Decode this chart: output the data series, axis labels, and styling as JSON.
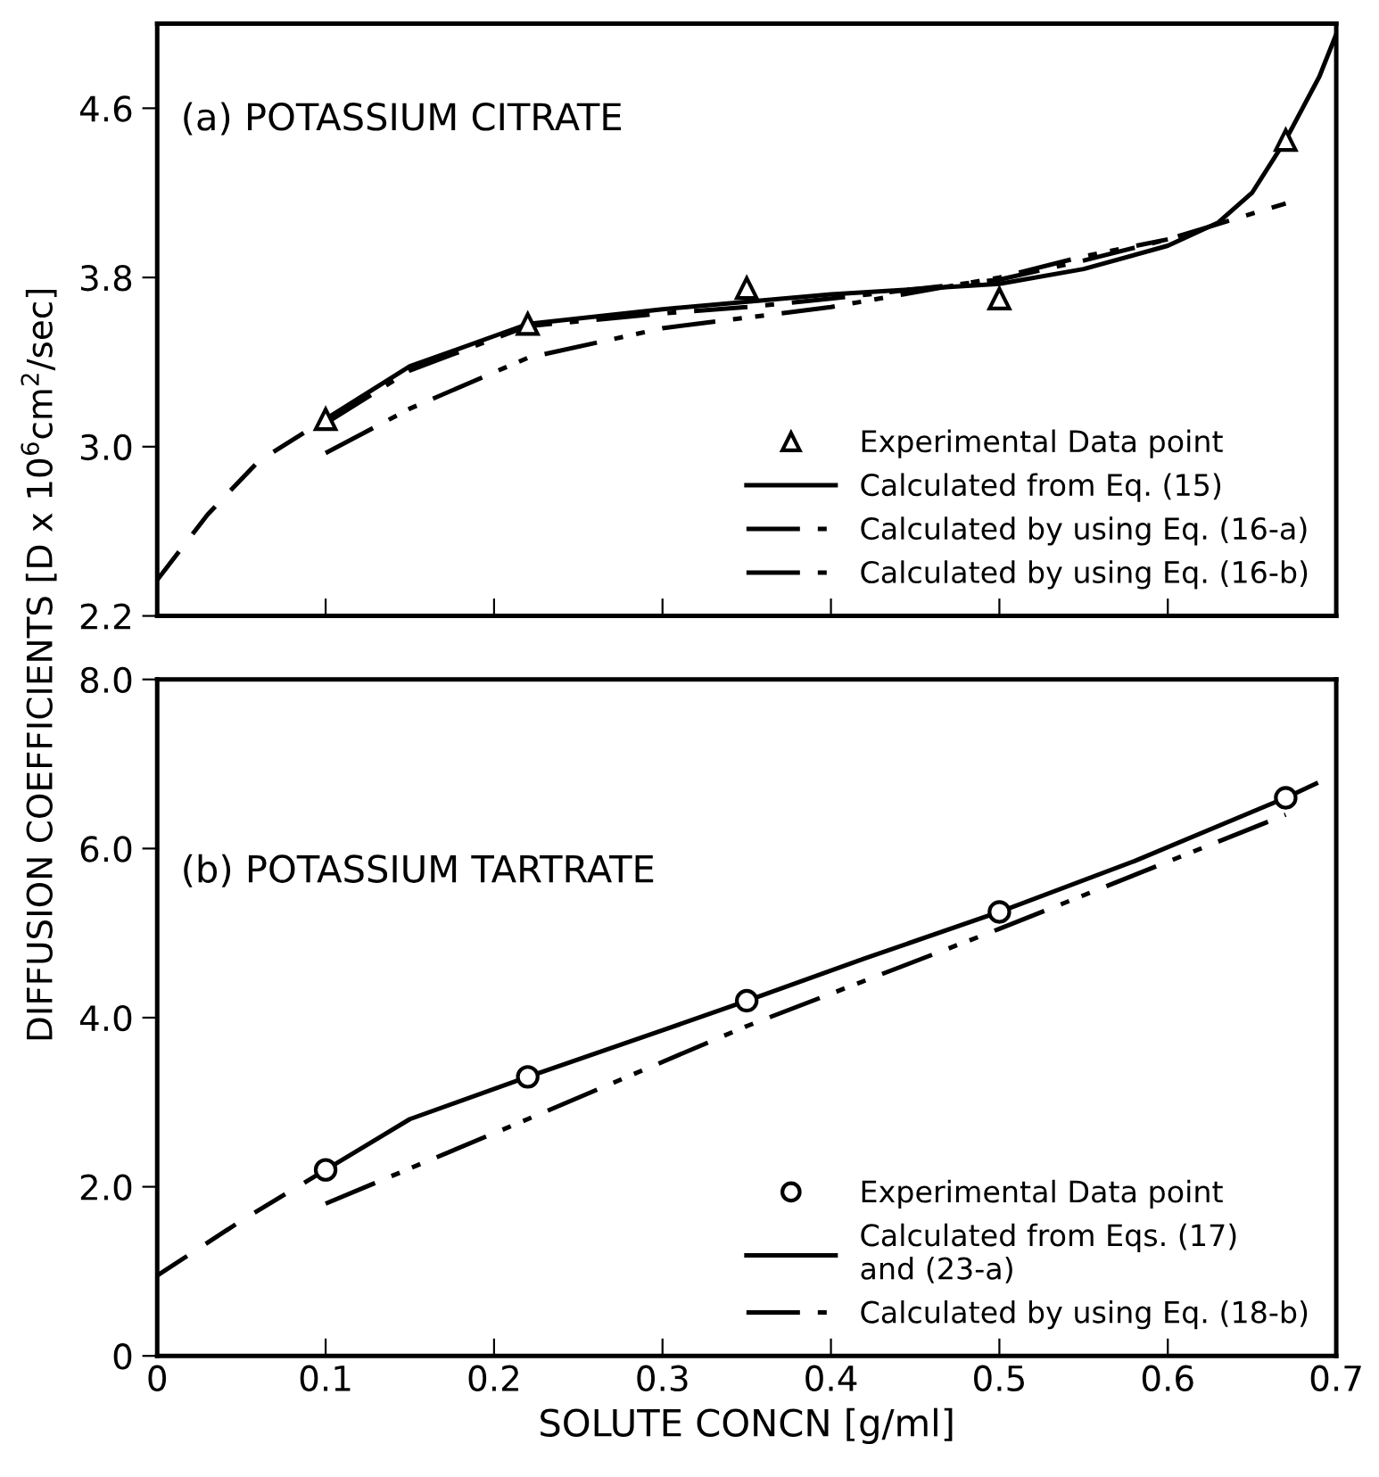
{
  "chart_data": [
    {
      "type": "line",
      "ylabel": "DIFFUSION COEFFICIENTS [D x 10$^{6}$cm$^{2}$/sec]",
      "annotations": [
        "(a) POTASSIUM CITRATE"
      ],
      "xlim": [
        0,
        0.7
      ],
      "ylim": [
        2.2,
        5.0
      ],
      "xticks": [
        {
          "value": 0,
          "label": null
        },
        {
          "value": 0.1,
          "label": null
        },
        {
          "value": 0.2,
          "label": null
        },
        {
          "value": 0.3,
          "label": null
        },
        {
          "value": 0.4,
          "label": null
        },
        {
          "value": 0.5,
          "label": null
        },
        {
          "value": 0.6,
          "label": null
        },
        {
          "value": 0.7,
          "label": null
        }
      ],
      "yticks": [
        {
          "value": 2.2,
          "label": "2.2"
        },
        {
          "value": 3.0,
          "label": "3.0"
        },
        {
          "value": 3.8,
          "label": "3.8"
        },
        {
          "value": 4.6,
          "label": "4.6"
        }
      ],
      "tick_labels": "y",
      "legend": "bottom right",
      "grid": false,
      "series": [
        {
          "name": "Experimental Data point",
          "type": "scatter",
          "marker": "triangle",
          "color": "#000000",
          "x": [
            0.1,
            0.22,
            0.35,
            0.5,
            0.67
          ],
          "values": [
            3.13,
            3.58,
            3.75,
            3.7,
            4.45
          ]
        },
        {
          "name": "Calculated from Eq. (15)",
          "line_style": "solid",
          "color": "#000000",
          "x": [
            0.1,
            0.15,
            0.22,
            0.3,
            0.4,
            0.5,
            0.55,
            0.6,
            0.63,
            0.65,
            0.67,
            0.69,
            0.7
          ],
          "values": [
            3.13,
            3.38,
            3.58,
            3.65,
            3.72,
            3.77,
            3.84,
            3.95,
            4.06,
            4.2,
            4.45,
            4.75,
            4.95
          ]
        },
        {
          "line_style": "dashed",
          "color": "#000000",
          "x": [
            0,
            0.03,
            0.06,
            0.1
          ],
          "values": [
            2.37,
            2.68,
            2.93,
            3.13
          ]
        },
        {
          "name": "Calculated by using Eq. (16-a)",
          "line_style": "dashdot",
          "color": "#000000",
          "x": [
            0.1,
            0.15,
            0.22,
            0.3,
            0.35,
            0.4,
            0.5,
            0.55,
            0.6,
            0.67
          ],
          "values": [
            3.11,
            3.36,
            3.57,
            3.63,
            3.66,
            3.7,
            3.79,
            3.88,
            3.98,
            4.15
          ]
        },
        {
          "name": "Calculated by using Eq. (16-b)",
          "line_style": "dashdotdot",
          "color": "#000000",
          "x": [
            0.1,
            0.15,
            0.22,
            0.3,
            0.4,
            0.5,
            0.55,
            0.6
          ],
          "values": [
            2.97,
            3.18,
            3.42,
            3.56,
            3.66,
            3.8,
            3.9,
            3.98
          ]
        }
      ]
    },
    {
      "type": "line",
      "xlabel": "SOLUTE CONCN [g/ml]",
      "annotations": [
        "(b) POTASSIUM TARTRATE"
      ],
      "xlim": [
        0,
        0.7
      ],
      "ylim": [
        0,
        8.0
      ],
      "xticks": [
        0,
        0.1,
        0.2,
        0.3,
        0.4,
        0.5,
        0.6,
        0.7
      ],
      "yticks": [
        {
          "value": 0,
          "label": "0"
        },
        {
          "value": 2.0,
          "label": "2.0"
        },
        {
          "value": 4.0,
          "label": "4.0"
        },
        {
          "value": 6.0,
          "label": "6.0"
        },
        {
          "value": 8.0,
          "label": "8.0"
        }
      ],
      "legend": "bottom right",
      "grid": false,
      "series": [
        {
          "name": "Experimental Data point",
          "type": "scatter",
          "marker": "circle",
          "color": "#000000",
          "x": [
            0.1,
            0.22,
            0.35,
            0.5,
            0.67
          ],
          "values": [
            2.2,
            3.3,
            4.2,
            5.25,
            6.6
          ]
        },
        {
          "name": "Calculated from Eqs. (17)\nand (23-a)",
          "line_style": "solid",
          "color": "#000000",
          "x": [
            0.1,
            0.15,
            0.22,
            0.3,
            0.35,
            0.42,
            0.5,
            0.58,
            0.67
          ],
          "values": [
            2.2,
            2.8,
            3.3,
            3.85,
            4.2,
            4.7,
            5.25,
            5.85,
            6.6
          ]
        },
        {
          "line_style": "dashed",
          "color": "#000000",
          "x": [
            0,
            0.05,
            0.1
          ],
          "values": [
            0.95,
            1.6,
            2.2
          ]
        },
        {
          "line_style": "dashed",
          "color": "#000000",
          "x": [
            0.67,
            0.7
          ],
          "values": [
            6.6,
            6.88
          ]
        },
        {
          "name": "Calculated by using Eq. (18-b)",
          "line_style": "dashdotdot",
          "color": "#000000",
          "x": [
            0.1,
            0.22,
            0.35,
            0.5,
            0.67
          ],
          "values": [
            1.8,
            2.8,
            3.9,
            5.05,
            6.4
          ]
        }
      ]
    }
  ]
}
